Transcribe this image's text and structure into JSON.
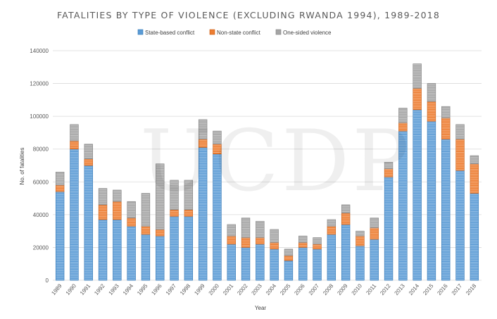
{
  "chart_data": {
    "type": "bar",
    "stacked": true,
    "title": "FATALITIES BY TYPE OF VIOLENCE (EXCLUDING RWANDA 1994), 1989-2018",
    "xlabel": "Year",
    "ylabel": "No. of fatalities",
    "ylim": [
      0,
      140000
    ],
    "yticks": [
      0,
      20000,
      40000,
      60000,
      80000,
      100000,
      120000,
      140000
    ],
    "ytick_labels": [
      "0",
      "20000",
      "40000",
      "60000",
      "80000",
      "100000",
      "120000",
      "140000"
    ],
    "grid": true,
    "legend_position": "top",
    "watermark": "UCDP",
    "categories": [
      "1989",
      "1990",
      "1991",
      "1992",
      "1993",
      "1994",
      "1995",
      "1996",
      "1997",
      "1998",
      "1999",
      "2000",
      "2001",
      "2002",
      "2003",
      "2004",
      "2005",
      "2006",
      "2007",
      "2008",
      "2009",
      "2010",
      "2011",
      "2012",
      "2013",
      "2014",
      "2015",
      "2016",
      "2017",
      "2018"
    ],
    "series": [
      {
        "name": "State-based conflict",
        "color": "#5b9bd5",
        "values": [
          54000,
          80000,
          70000,
          37000,
          37000,
          33000,
          28000,
          27000,
          39000,
          39000,
          81000,
          77000,
          22000,
          20000,
          22000,
          19000,
          12000,
          20000,
          19000,
          28000,
          34000,
          21000,
          25000,
          63000,
          91000,
          104000,
          97000,
          86000,
          67000,
          53000
        ]
      },
      {
        "name": "Non-state conflict",
        "color": "#ed7d31",
        "values": [
          4000,
          5000,
          4000,
          9000,
          11000,
          5000,
          5000,
          4000,
          4000,
          4000,
          5000,
          6000,
          5000,
          6000,
          4000,
          4000,
          3000,
          3000,
          3000,
          5000,
          7000,
          6000,
          7000,
          5000,
          5000,
          13000,
          12000,
          13000,
          19000,
          18000
        ]
      },
      {
        "name": "One-sided violence",
        "color": "#a5a5a5",
        "values": [
          8000,
          10000,
          9000,
          10000,
          7000,
          10000,
          20000,
          40000,
          18000,
          18000,
          12000,
          8000,
          7000,
          12000,
          10000,
          8000,
          4000,
          4000,
          4000,
          4000,
          5000,
          3000,
          6000,
          4000,
          9000,
          15000,
          11000,
          7000,
          9000,
          5000
        ]
      }
    ]
  }
}
